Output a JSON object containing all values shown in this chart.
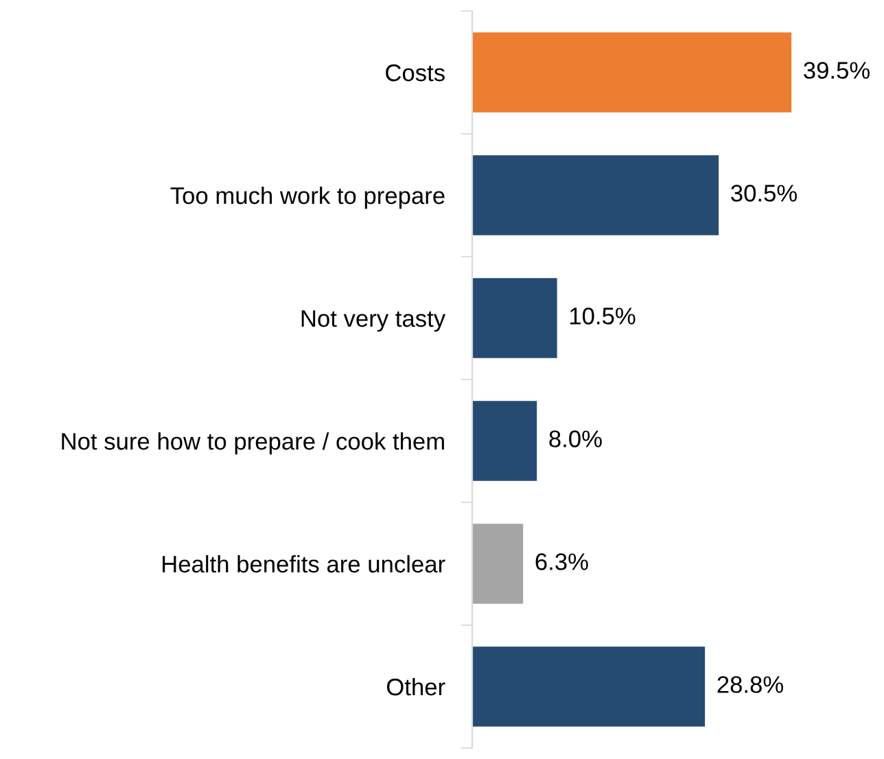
{
  "chart_data": {
    "type": "bar",
    "orientation": "horizontal",
    "categories": [
      "Costs",
      "Too much work to prepare",
      "Not very tasty",
      "Not sure how to prepare / cook them",
      "Health benefits are unclear",
      "Other"
    ],
    "values": [
      39.5,
      30.5,
      10.5,
      8.0,
      6.3,
      28.8
    ],
    "colors": [
      "#ed7d31",
      "#264b73",
      "#264b73",
      "#264b73",
      "#a5a5a5",
      "#264b73"
    ],
    "value_labels": [
      "39.5%",
      "30.5%",
      "10.5%",
      "8.0%",
      "6.3%",
      "28.8%"
    ],
    "grid": false,
    "legend": false
  }
}
